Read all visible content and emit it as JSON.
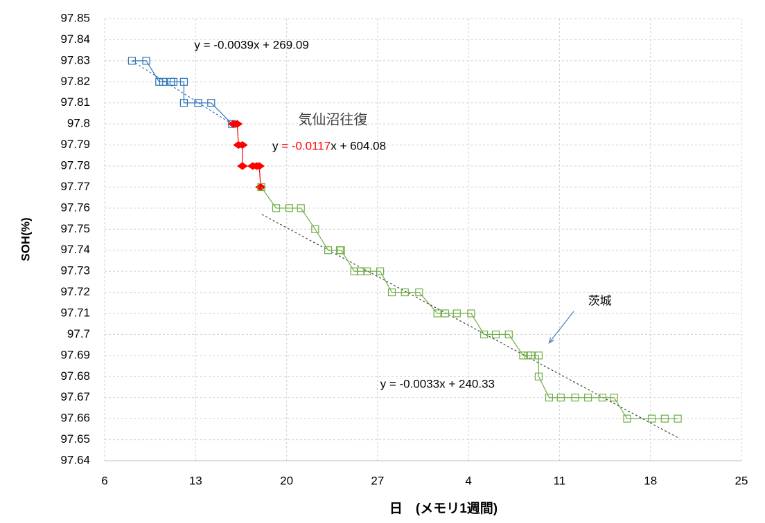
{
  "chart_data": {
    "type": "scatter",
    "y_label": "SOH(%)",
    "x_label": "日　(メモリ1週間)",
    "xlim": [
      6,
      55
    ],
    "xticks": [
      6,
      13,
      20,
      27,
      {
        "value": 34,
        "label": "4"
      },
      {
        "value": 41,
        "label": "11"
      },
      {
        "value": 48,
        "label": "18"
      },
      {
        "value": 55,
        "label": "25"
      }
    ],
    "ylim": [
      97.64,
      97.85
    ],
    "yticks": [
      97.64,
      97.65,
      97.66,
      97.67,
      97.68,
      97.69,
      97.7,
      97.71,
      97.72,
      97.73,
      97.74,
      97.75,
      97.76,
      97.77,
      97.78,
      97.79,
      97.8,
      97.81,
      97.82,
      97.83,
      97.84,
      97.85
    ],
    "grid": true,
    "series": [
      {
        "color": "#2e75b6",
        "marker": "square",
        "x": [
          8.1,
          9.2,
          10.2,
          10.5,
          11.1,
          11.3,
          12.1,
          12.1,
          13.2,
          14.2,
          15.8
        ],
        "values": [
          97.83,
          97.83,
          97.82,
          97.82,
          97.82,
          97.82,
          97.82,
          97.81,
          97.81,
          97.81,
          97.8
        ]
      },
      {
        "color": "#ff0000",
        "marker": "diamond",
        "x": [
          15.9,
          16.2,
          16.3,
          16.6,
          16.6,
          17.4,
          17.7,
          17.9,
          18.0
        ],
        "values": [
          97.8,
          97.8,
          97.79,
          97.79,
          97.78,
          97.78,
          97.78,
          97.78,
          97.77
        ]
      },
      {
        "color": "#70ad47",
        "marker": "square",
        "x": [
          18.05,
          19.2,
          20.2,
          21.1,
          22.2,
          23.2,
          24.1,
          24.2,
          25.2,
          25.7,
          26.2,
          27.2,
          28.1,
          29.1,
          30.2,
          31.6,
          32.2,
          33.1,
          34.2,
          35.2,
          36.1,
          37.1,
          38.2,
          38.6,
          38.8,
          39.4,
          39.4,
          40.2,
          41.1,
          42.2,
          43.2,
          44.3,
          45.2,
          46.2,
          48.1,
          49.1,
          50.1
        ],
        "values": [
          97.77,
          97.76,
          97.76,
          97.76,
          97.75,
          97.74,
          97.74,
          97.74,
          97.73,
          97.73,
          97.73,
          97.73,
          97.72,
          97.72,
          97.72,
          97.71,
          97.71,
          97.71,
          97.71,
          97.7,
          97.7,
          97.7,
          97.69,
          97.69,
          97.69,
          97.69,
          97.68,
          97.67,
          97.67,
          97.67,
          97.67,
          97.67,
          97.67,
          97.66,
          97.66,
          97.66,
          97.66
        ]
      }
    ],
    "trendlines": [
      {
        "color": "#2e75b6",
        "x": [
          8.1,
          15.8
        ],
        "values": [
          97.83,
          97.8
        ]
      },
      {
        "color": "#404040",
        "x": [
          18.1,
          50.1
        ],
        "values": [
          97.757,
          97.651
        ]
      }
    ],
    "annotations": [
      {
        "parts": [
          "y = -0.0039x + 269.09"
        ],
        "colors": [
          "#000000"
        ],
        "x": 12.9,
        "y": 97.837
      },
      {
        "parts": [
          "気仙沼往復"
        ],
        "colors": [
          "#404040"
        ],
        "x": 20.9,
        "y": 97.8015
      },
      {
        "parts": [
          "y ",
          "= -0.0117",
          "x + 604.08"
        ],
        "colors": [
          "#000000",
          "#ff0000",
          "#000000"
        ],
        "x": 18.9,
        "y": 97.789
      },
      {
        "parts": [
          "茨城"
        ],
        "colors": [
          "#000000"
        ],
        "x": 43.2,
        "y": 97.7155
      },
      {
        "parts": [
          "y = -0.0033x + 240.33"
        ],
        "colors": [
          "#000000"
        ],
        "x": 27.2,
        "y": 97.676
      }
    ],
    "arrow": {
      "color": "#4a7ebb",
      "x": [
        42.1,
        40.2
      ],
      "values": [
        97.711,
        97.696
      ]
    }
  }
}
